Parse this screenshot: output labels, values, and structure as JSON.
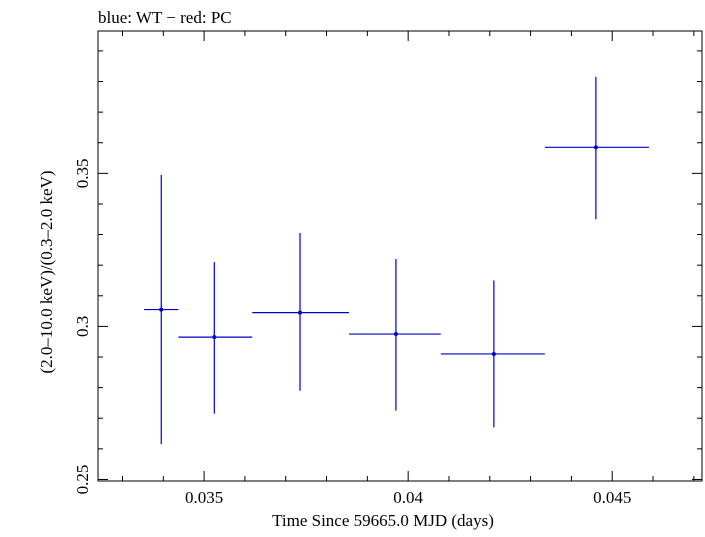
{
  "chart_data": {
    "type": "scatter",
    "title": "blue: WT − red: PC",
    "xlabel": "Time Since 59665.0 MJD (days)",
    "ylabel": "(2.0–10.0 keV)/(0.3–2.0 keV)",
    "xlim": [
      0.0324,
      0.0472
    ],
    "ylim": [
      0.2495,
      0.3965
    ],
    "x_major_ticks": [
      0.035,
      0.04,
      0.045
    ],
    "x_tick_labels": [
      "0.035",
      "0.04",
      "0.045"
    ],
    "x_minor_step": 0.001,
    "y_major_ticks": [
      0.25,
      0.3,
      0.35
    ],
    "y_tick_labels": [
      "0.25",
      "0.3",
      "0.35"
    ],
    "y_minor_step": 0.01,
    "grid": false,
    "legend": "none",
    "series": [
      {
        "name": "WT",
        "color": "#0000cc",
        "points": [
          {
            "x": 0.03395,
            "y": 0.3055,
            "xlo": 0.03353,
            "xhi": 0.03437,
            "ylo": 0.2615,
            "yhi": 0.3495
          },
          {
            "x": 0.03525,
            "y": 0.2965,
            "xlo": 0.03437,
            "xhi": 0.03618,
            "ylo": 0.2715,
            "yhi": 0.321
          },
          {
            "x": 0.03735,
            "y": 0.3045,
            "xlo": 0.03618,
            "xhi": 0.03855,
            "ylo": 0.279,
            "yhi": 0.3305
          },
          {
            "x": 0.0397,
            "y": 0.2975,
            "xlo": 0.03855,
            "xhi": 0.0408,
            "ylo": 0.2725,
            "yhi": 0.322
          },
          {
            "x": 0.0421,
            "y": 0.291,
            "xlo": 0.0408,
            "xhi": 0.04335,
            "ylo": 0.267,
            "yhi": 0.315
          },
          {
            "x": 0.0446,
            "y": 0.3585,
            "xlo": 0.04335,
            "xhi": 0.0459,
            "ylo": 0.335,
            "yhi": 0.3815
          }
        ]
      }
    ]
  }
}
